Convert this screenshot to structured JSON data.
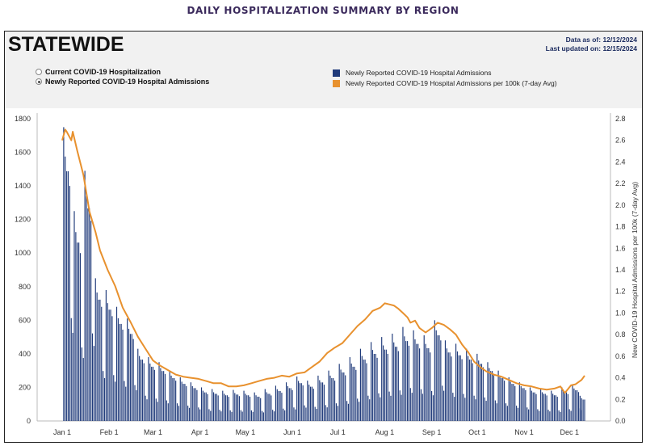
{
  "page": {
    "heading": "DAILY HOSPITALIZATION SUMMARY BY REGION"
  },
  "panel": {
    "title": "STATEWIDE",
    "data_as_of": "Data as of: 12/12/2024",
    "last_updated": "Last updated on: 12/15/2024",
    "radio_options": [
      {
        "label": "Current COVID-19 Hospitalization",
        "checked": false
      },
      {
        "label": "Newly Reported COVID-19 Hospital Admissions",
        "checked": true
      }
    ]
  },
  "colors": {
    "bars": "#1f3a7a",
    "line": "#e8912e",
    "heading": "#3b2a5c"
  },
  "chart_data": {
    "type": "bar",
    "title": "",
    "xlabel": "",
    "ylabel": "",
    "ylabel_right": "New COVID-19 Hospital Admissions per 100k (7-day Avg)",
    "ylim": [
      0,
      1800
    ],
    "ylim_right": [
      0,
      2.8
    ],
    "yticks": [
      0,
      200,
      400,
      600,
      800,
      1000,
      1200,
      1400,
      1600,
      1800
    ],
    "yticks_right": [
      "0.0",
      "0.2",
      "0.4",
      "0.6",
      "0.8",
      "1.0",
      "1.2",
      "1.4",
      "1.6",
      "1.8",
      "2.0",
      "2.2",
      "2.4",
      "2.6",
      "2.8"
    ],
    "xticks": [
      "Jan 1",
      "Feb 1",
      "Mar 1",
      "Apr 1",
      "May 1",
      "Jun 1",
      "Jul 1",
      "Aug 1",
      "Sep 1",
      "Oct 1",
      "Nov 1",
      "Dec 1"
    ],
    "x_range_days": [
      0,
      345
    ],
    "grid": false,
    "legend_position": "top",
    "series": [
      {
        "name": "Newly Reported COVID-19 Hospital Admissions",
        "type": "bar",
        "axis": "left",
        "color": "#1f3a7a",
        "weekly_pattern": [
          1.0,
          0.9,
          0.85,
          0.85,
          0.8,
          0.35,
          0.3
        ],
        "weekly_peaks": [
          [
            1,
            1750
          ],
          [
            8,
            1250
          ],
          [
            15,
            1490
          ],
          [
            22,
            850
          ],
          [
            29,
            780
          ],
          [
            36,
            680
          ],
          [
            43,
            610
          ],
          [
            50,
            430
          ],
          [
            57,
            380
          ],
          [
            64,
            350
          ],
          [
            71,
            300
          ],
          [
            78,
            260
          ],
          [
            85,
            230
          ],
          [
            92,
            200
          ],
          [
            99,
            190
          ],
          [
            106,
            180
          ],
          [
            113,
            185
          ],
          [
            120,
            180
          ],
          [
            127,
            170
          ],
          [
            134,
            190
          ],
          [
            141,
            210
          ],
          [
            148,
            230
          ],
          [
            155,
            265
          ],
          [
            162,
            240
          ],
          [
            169,
            270
          ],
          [
            176,
            300
          ],
          [
            183,
            340
          ],
          [
            190,
            380
          ],
          [
            197,
            430
          ],
          [
            204,
            470
          ],
          [
            211,
            500
          ],
          [
            218,
            520
          ],
          [
            225,
            560
          ],
          [
            232,
            540
          ],
          [
            239,
            510
          ],
          [
            246,
            600
          ],
          [
            253,
            480
          ],
          [
            260,
            460
          ],
          [
            267,
            430
          ],
          [
            274,
            400
          ],
          [
            281,
            350
          ],
          [
            288,
            300
          ],
          [
            295,
            260
          ],
          [
            302,
            230
          ],
          [
            309,
            200
          ],
          [
            316,
            190
          ],
          [
            323,
            180
          ],
          [
            330,
            200
          ],
          [
            337,
            215
          ],
          [
            342,
            150
          ]
        ]
      },
      {
        "name": "Newly Reported COVID-19 Hospital Admissions per 100k (7-day Avg)",
        "type": "line",
        "axis": "right",
        "color": "#e8912e",
        "points": [
          [
            0,
            2.6
          ],
          [
            2,
            2.7
          ],
          [
            3,
            2.68
          ],
          [
            6,
            2.6
          ],
          [
            7,
            2.68
          ],
          [
            10,
            2.5
          ],
          [
            14,
            2.28
          ],
          [
            18,
            1.94
          ],
          [
            22,
            1.75
          ],
          [
            25,
            1.58
          ],
          [
            30,
            1.4
          ],
          [
            35,
            1.25
          ],
          [
            40,
            1.05
          ],
          [
            45,
            0.92
          ],
          [
            50,
            0.78
          ],
          [
            55,
            0.67
          ],
          [
            60,
            0.56
          ],
          [
            65,
            0.51
          ],
          [
            70,
            0.47
          ],
          [
            75,
            0.43
          ],
          [
            80,
            0.41
          ],
          [
            85,
            0.4
          ],
          [
            90,
            0.39
          ],
          [
            95,
            0.37
          ],
          [
            100,
            0.35
          ],
          [
            105,
            0.35
          ],
          [
            110,
            0.32
          ],
          [
            115,
            0.32
          ],
          [
            120,
            0.33
          ],
          [
            125,
            0.35
          ],
          [
            130,
            0.37
          ],
          [
            135,
            0.39
          ],
          [
            140,
            0.4
          ],
          [
            145,
            0.42
          ],
          [
            150,
            0.41
          ],
          [
            155,
            0.44
          ],
          [
            160,
            0.45
          ],
          [
            165,
            0.5
          ],
          [
            170,
            0.55
          ],
          [
            175,
            0.63
          ],
          [
            180,
            0.68
          ],
          [
            185,
            0.72
          ],
          [
            190,
            0.8
          ],
          [
            195,
            0.88
          ],
          [
            200,
            0.94
          ],
          [
            205,
            1.02
          ],
          [
            210,
            1.05
          ],
          [
            213,
            1.09
          ],
          [
            216,
            1.08
          ],
          [
            219,
            1.07
          ],
          [
            222,
            1.04
          ],
          [
            225,
            1.0
          ],
          [
            228,
            0.96
          ],
          [
            230,
            0.91
          ],
          [
            233,
            0.93
          ],
          [
            236,
            0.86
          ],
          [
            240,
            0.82
          ],
          [
            244,
            0.86
          ],
          [
            248,
            0.91
          ],
          [
            252,
            0.89
          ],
          [
            256,
            0.85
          ],
          [
            260,
            0.8
          ],
          [
            264,
            0.71
          ],
          [
            268,
            0.64
          ],
          [
            272,
            0.55
          ],
          [
            276,
            0.5
          ],
          [
            280,
            0.46
          ],
          [
            285,
            0.43
          ],
          [
            290,
            0.41
          ],
          [
            295,
            0.38
          ],
          [
            300,
            0.35
          ],
          [
            305,
            0.33
          ],
          [
            310,
            0.32
          ],
          [
            315,
            0.3
          ],
          [
            320,
            0.29
          ],
          [
            325,
            0.3
          ],
          [
            329,
            0.32
          ],
          [
            332,
            0.26
          ],
          [
            336,
            0.33
          ],
          [
            339,
            0.34
          ],
          [
            343,
            0.38
          ],
          [
            345,
            0.42
          ]
        ]
      }
    ]
  }
}
